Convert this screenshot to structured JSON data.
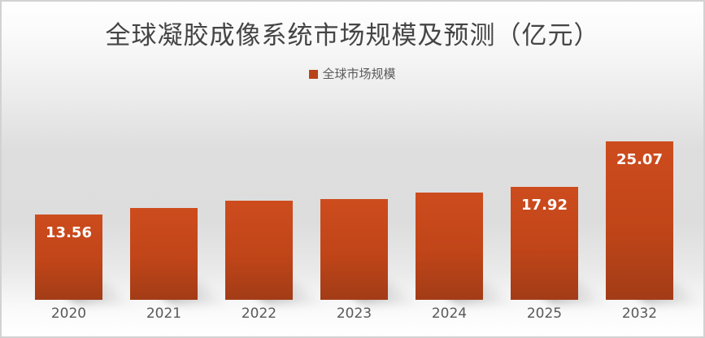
{
  "chart_data": {
    "type": "bar",
    "title": "全球凝胶成像系统市场规模及预测（亿元）",
    "legend_label": "全球市场规模",
    "legend_position": "top-center",
    "categories": [
      "2020",
      "2021",
      "2022",
      "2023",
      "2024",
      "2025",
      "2032"
    ],
    "values": [
      13.56,
      14.5,
      15.7,
      16.0,
      17.0,
      17.92,
      25.07
    ],
    "value_labels": [
      "13.56",
      "",
      "",
      "",
      "",
      "17.92",
      "25.07"
    ],
    "xlabel": "",
    "ylabel": "",
    "ylim": [
      0,
      27
    ],
    "grid": false,
    "colors": {
      "bar_gradient_top": "#CD4C1E",
      "bar_gradient_mid": "#C04518",
      "bar_gradient_bottom": "#A23C17",
      "legend_marker": "#B8431A",
      "title_text": "#454545",
      "axis_text": "#595959",
      "value_label_text": "#FFFFFF"
    }
  }
}
